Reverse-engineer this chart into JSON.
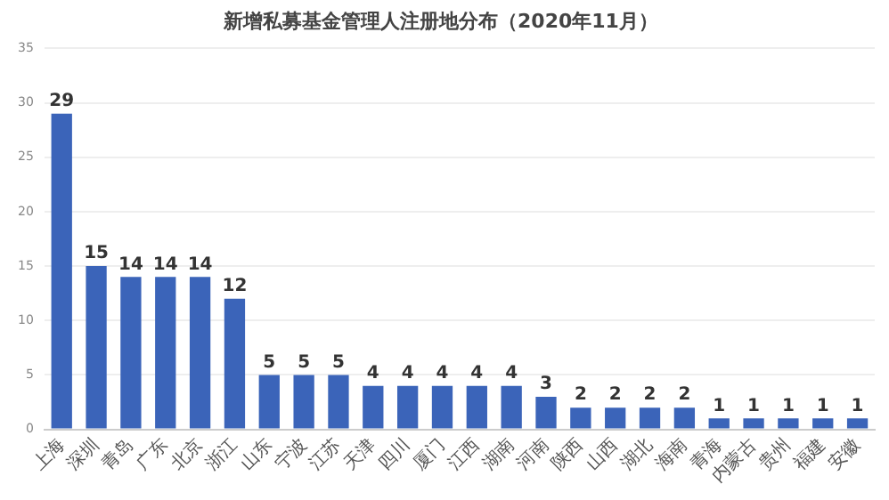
{
  "chart_data": {
    "type": "bar",
    "title": "新增私募基金管理人注册地分布（2020年11月）",
    "categories": [
      "上海",
      "深圳",
      "青岛",
      "广东",
      "北京",
      "浙江",
      "山东",
      "宁波",
      "江苏",
      "天津",
      "四川",
      "厦门",
      "江西",
      "湖南",
      "河南",
      "陕西",
      "山西",
      "湖北",
      "海南",
      "青海",
      "内蒙古",
      "贵州",
      "福建",
      "安徽"
    ],
    "values": [
      29,
      15,
      14,
      14,
      14,
      12,
      5,
      5,
      5,
      4,
      4,
      4,
      4,
      4,
      3,
      2,
      2,
      2,
      2,
      1,
      1,
      1,
      1,
      1
    ],
    "color": "#3b64b9",
    "ylim": [
      0,
      35
    ],
    "yticks": [
      0,
      5,
      10,
      15,
      20,
      25,
      30,
      35
    ],
    "grid": "y",
    "data_labels": true
  }
}
